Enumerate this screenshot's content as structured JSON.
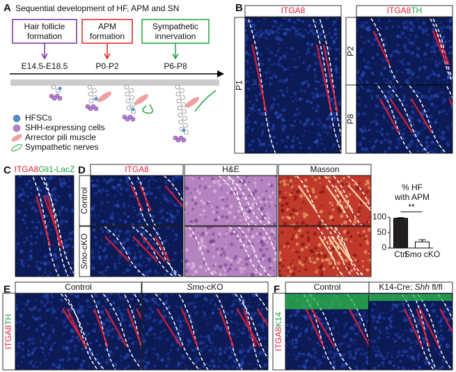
{
  "panel_labels": [
    "A",
    "B",
    "C",
    "D",
    "E",
    "F"
  ],
  "A": {
    "title": "Sequential development of HF, APM and SN",
    "stages": [
      {
        "lines": [
          "Hair follicle",
          "formation"
        ],
        "time": "E14.5-E18.5",
        "color": "#7030a0"
      },
      {
        "lines": [
          "APM",
          "formation"
        ],
        "time": "P0-P2",
        "color": "#e02020"
      },
      {
        "lines": [
          "Sympathetic",
          "innervation"
        ],
        "time": "P6-P8",
        "color": "#20a040"
      }
    ],
    "legend": [
      "HFSCs",
      "SHH-expressing cells",
      "Arrector pili muscle",
      "Sympathetic nerves"
    ]
  },
  "B": {
    "left": {
      "marker": "ITGA8",
      "stage": "P1"
    },
    "right": {
      "marker": "ITGA8",
      "marker2": "TH",
      "stages": [
        "P2",
        "P8"
      ]
    }
  },
  "C": {
    "marker": "ITGA8",
    "marker2": "Gli1-LacZ"
  },
  "D": {
    "columns": [
      "ITGA8",
      "H&E",
      "Masson"
    ],
    "rows": [
      {
        "text": "Control"
      },
      {
        "gene": "Smo",
        "suffix": "-cKO"
      }
    ]
  },
  "E": {
    "side": "ITGA8",
    "side2": "TH",
    "columns": [
      {
        "text": "Control"
      },
      {
        "gene": "Smo",
        "suffix": "-cKO"
      }
    ]
  },
  "F": {
    "side": "ITGA8",
    "side2": "K14",
    "columns": [
      {
        "text": "Control"
      },
      {
        "prefix": "K14-Cre; ",
        "gene": "Shh",
        "suffix": " fl/fl"
      }
    ]
  },
  "chart_data": {
    "type": "bar",
    "title": [
      "% HF",
      "with APM"
    ],
    "categories": [
      "Ctrl",
      "Smo cKO"
    ],
    "values": [
      97,
      20
    ],
    "errors": [
      2,
      7
    ],
    "colors": [
      "#231f20",
      "#ffffff"
    ],
    "ylim": [
      0,
      100
    ],
    "yticks": [
      0,
      50,
      100
    ],
    "annotation": "**"
  }
}
